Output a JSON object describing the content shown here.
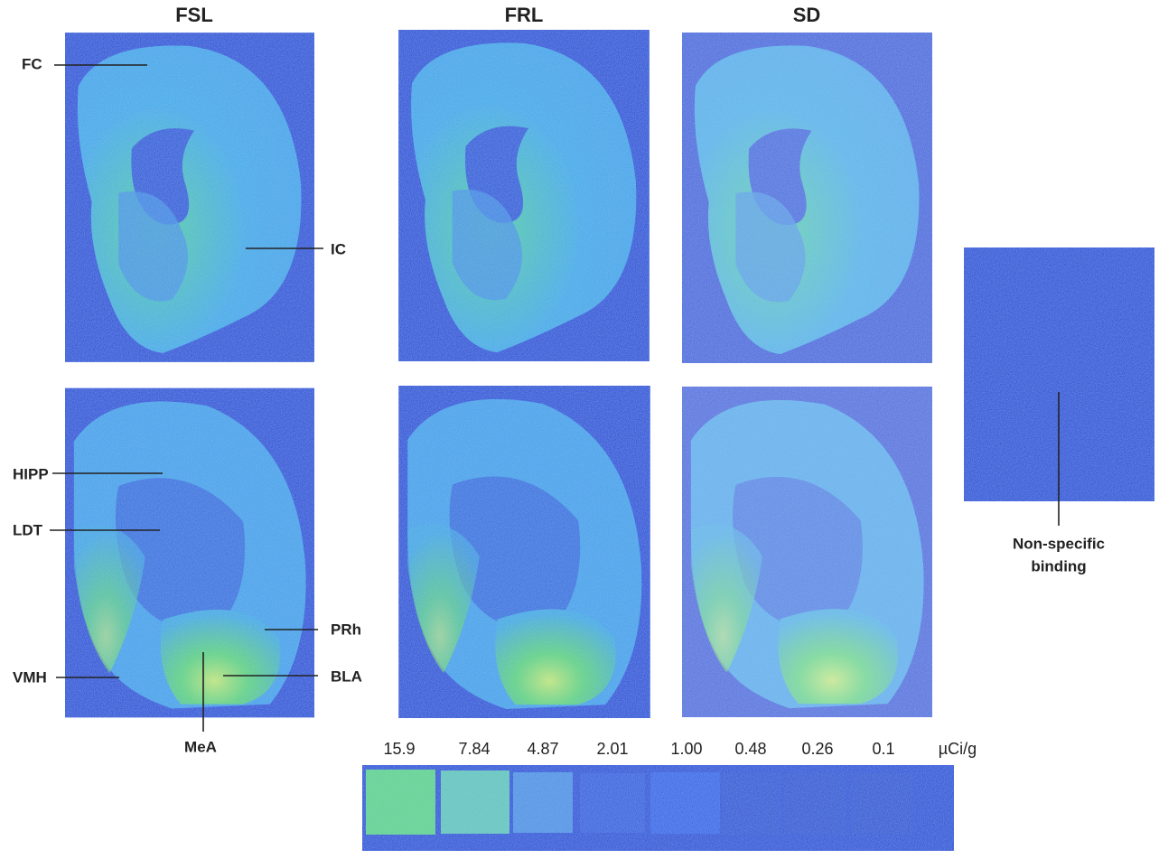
{
  "headers": [
    "FSL",
    "FRL",
    "SD"
  ],
  "labels": {
    "FC": "FC",
    "IC": "IC",
    "HIPP": "HIPP",
    "LDT": "LDT",
    "PRh": "PRh",
    "VMH": "VMH",
    "BLA": "BLA",
    "MeA": "MeA"
  },
  "nonspecific": [
    "Non-specific",
    "binding"
  ],
  "calibration": {
    "values": [
      "15.9",
      "7.84",
      "4.87",
      "2.01",
      "1.00",
      "0.48",
      "0.26",
      "0.1"
    ],
    "unit": "µCi/g"
  }
}
